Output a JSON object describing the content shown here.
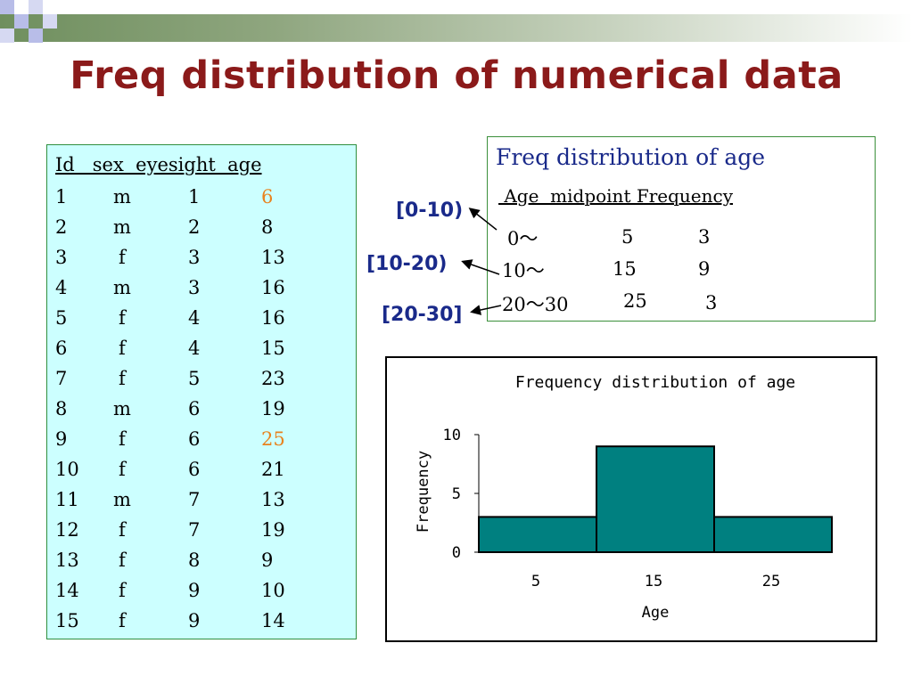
{
  "title": "Freq distribution of numerical data",
  "table": {
    "header": "Id   sex  eyesight  age",
    "rows": [
      {
        "id": "1",
        "sex": "m",
        "eyesight": "1",
        "age": "6",
        "highlight": true
      },
      {
        "id": "2",
        "sex": "m",
        "eyesight": "2",
        "age": "8"
      },
      {
        "id": "3",
        "sex": "f",
        "eyesight": "3",
        "age": "13"
      },
      {
        "id": "4",
        "sex": "m",
        "eyesight": "3",
        "age": "16"
      },
      {
        "id": "5",
        "sex": "f",
        "eyesight": "4",
        "age": "16"
      },
      {
        "id": "6",
        "sex": "f",
        "eyesight": "4",
        "age": "15"
      },
      {
        "id": "7",
        "sex": "f",
        "eyesight": "5",
        "age": "23"
      },
      {
        "id": "8",
        "sex": "m",
        "eyesight": "6",
        "age": "19"
      },
      {
        "id": "9",
        "sex": "f",
        "eyesight": "6",
        "age": "25",
        "highlight": true
      },
      {
        "id": "10",
        "sex": "f",
        "eyesight": "6",
        "age": "21"
      },
      {
        "id": "11",
        "sex": "m",
        "eyesight": "7",
        "age": "13"
      },
      {
        "id": "12",
        "sex": "f",
        "eyesight": "7",
        "age": "19"
      },
      {
        "id": "13",
        "sex": "f",
        "eyesight": "8",
        "age": "9"
      },
      {
        "id": "14",
        "sex": "f",
        "eyesight": "9",
        "age": "10"
      },
      {
        "id": "15",
        "sex": "f",
        "eyesight": "9",
        "age": "14"
      }
    ]
  },
  "freq_box": {
    "title": "Freq distribution of age",
    "header": " Age  midpoint Frequency",
    "rows": [
      {
        "age": "0～",
        "midpoint": "5",
        "frequency": "3"
      },
      {
        "age": "10～",
        "midpoint": "15",
        "frequency": "9"
      },
      {
        "age": "20～30",
        "midpoint": "25",
        "frequency": "3"
      }
    ],
    "interval_labels": [
      "[0-10)",
      "[10-20)",
      "[20-30]"
    ]
  },
  "colors": {
    "title": "#8b1a1a",
    "highlight": "#e8821e",
    "label_blue": "#1a2a8a",
    "bar_fill": "#008080",
    "table_bg": "#ccffff"
  },
  "chart_data": {
    "type": "bar",
    "title": "Frequency distribution of age",
    "xlabel": "Age",
    "ylabel": "Frequency",
    "categories": [
      "5",
      "15",
      "25"
    ],
    "values": [
      3,
      9,
      3
    ],
    "ylim": [
      0,
      10
    ],
    "yticks": [
      "0",
      "5",
      "10"
    ],
    "grid": false,
    "legend": "none"
  }
}
